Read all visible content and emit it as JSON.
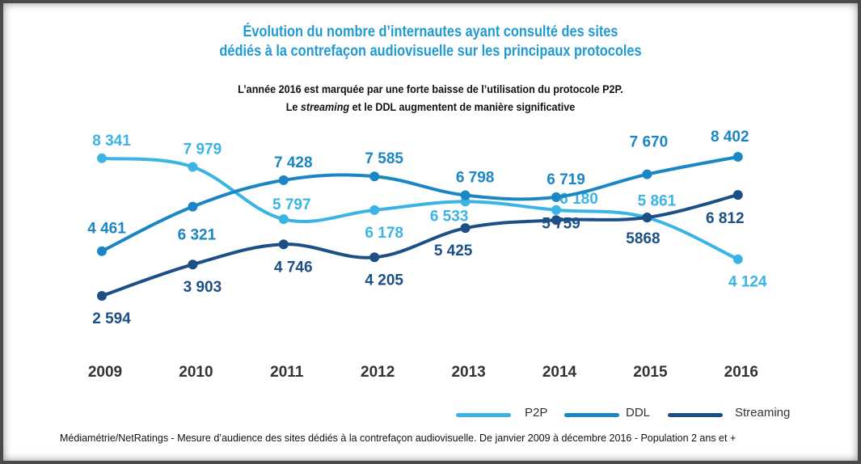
{
  "title_line1": "Évolution du nombre d’internautes ayant consulté des sites",
  "title_line2": "dédiés à la contrefaçon audiovisuelle sur les principaux protocoles",
  "subtitle_line1": "L’année 2016 est marquée par une forte baisse de l’utilisation du protocole P2P.",
  "subtitle_line2_prefix": "Le",
  "subtitle_line2_emph": "streaming",
  "subtitle_line2_suffix": "et le DDL augmentent de manière significative",
  "footer": "Médiamétrie/NetRatings - Mesure d’audience des sites dédiés à la contrefaçon audiovisuelle. De janvier 2009 à décembre 2016 - Population 2 ans et +",
  "chart_data": {
    "type": "line",
    "categories": [
      "2009",
      "2010",
      "2011",
      "2012",
      "2013",
      "2014",
      "2015",
      "2016"
    ],
    "series": [
      {
        "name": "P2P",
        "color": "#3bb4e5",
        "values": [
          8341,
          7979,
          5797,
          6178,
          6533,
          6180,
          5861,
          4124
        ],
        "labels": [
          "8 341",
          "7 979",
          "5 797",
          "6 178",
          "6 533",
          "6 180",
          "5 861",
          "4 124"
        ]
      },
      {
        "name": "DDL",
        "color": "#1a86c3",
        "values": [
          4461,
          6321,
          7428,
          7585,
          6798,
          6719,
          7670,
          8402
        ],
        "labels": [
          "4 461",
          "6 321",
          "7 428",
          "7 585",
          "6 798",
          "6 719",
          "7 670",
          "8 402"
        ]
      },
      {
        "name": "Streaming",
        "color": "#1c4f86",
        "values": [
          2594,
          3903,
          4746,
          4205,
          5425,
          5759,
          5868,
          6812
        ],
        "labels": [
          "2 594",
          "3 903",
          "4 746",
          "4 205",
          "5 425",
          "5 759",
          "5868",
          "6 812"
        ]
      }
    ],
    "ylim": [
      2000,
      9000
    ],
    "grid": false,
    "legend": "bottom-right"
  }
}
